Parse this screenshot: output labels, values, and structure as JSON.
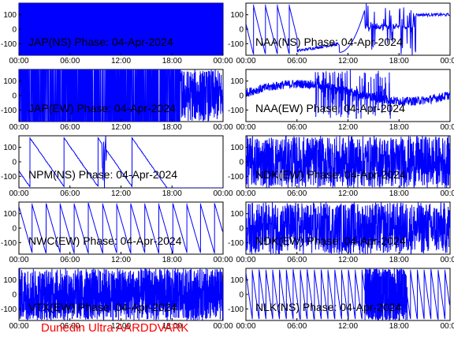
{
  "figure": {
    "footer": "Dunedin Ultra AARDDVARK",
    "footer_color": "#ff0000",
    "trace_color": "#0000ff"
  },
  "chart_data": [
    {
      "type": "line",
      "id": "jap-ns",
      "title": "JAP(NS) Phase: 04-Apr-2024",
      "x_tick_labels": [
        "00:00",
        "06:00",
        "12:00",
        "18:00",
        "00:00"
      ],
      "y_ticks": [
        100,
        0,
        -100
      ],
      "xlim": [
        0,
        24
      ],
      "ylim": [
        -180,
        180
      ],
      "pattern": "saturated",
      "description_values": {
        "ramps": []
      }
    },
    {
      "type": "line",
      "id": "naa-ns",
      "title": "NAA(NS) Phase: 04-Apr-2024",
      "x_tick_labels": [
        "00:00",
        "06:00",
        "12:00",
        "18:00",
        "00:00"
      ],
      "y_ticks": [
        100,
        0,
        -100
      ],
      "xlim": [
        0,
        24
      ],
      "ylim": [
        -180,
        180
      ],
      "pattern": "mixed"
    },
    {
      "type": "line",
      "id": "jap-ew",
      "title": "JAP(EW) Phase: 04-Apr-2024",
      "x_tick_labels": [
        "00:00",
        "06:00",
        "12:00",
        "18:00",
        "00:00"
      ],
      "y_ticks": [
        100,
        0,
        -100
      ],
      "xlim": [
        0,
        24
      ],
      "ylim": [
        -180,
        180
      ],
      "pattern": "saturated-tail"
    },
    {
      "type": "line",
      "id": "naa-ew",
      "title": "NAA(EW) Phase: 04-Apr-2024",
      "x_tick_labels": [
        "00:00",
        "06:00",
        "12:00",
        "18:00",
        "00:00"
      ],
      "y_ticks": [
        100,
        0,
        -100
      ],
      "xlim": [
        0,
        24
      ],
      "ylim": [
        -180,
        180
      ],
      "pattern": "band"
    },
    {
      "type": "line",
      "id": "npm-ns",
      "title": "NPM(NS) Phase: 04-Apr-2024",
      "x_tick_labels": [
        "00:00",
        "06:00",
        "12:00",
        "18:00",
        "00:00"
      ],
      "y_ticks": [
        100,
        0,
        -100
      ],
      "xlim": [
        0,
        24
      ],
      "ylim": [
        -180,
        180
      ],
      "pattern": "drift"
    },
    {
      "type": "line",
      "id": "ndk-ew-1",
      "title": "NDK(EW) Phase: 04-Apr-2024",
      "x_tick_labels": [
        "00:00",
        "06:00",
        "12:00",
        "18:00",
        "00:00"
      ],
      "y_ticks": [
        100,
        0,
        -100
      ],
      "xlim": [
        0,
        24
      ],
      "ylim": [
        -180,
        180
      ],
      "pattern": "noise"
    },
    {
      "type": "line",
      "id": "nwc-ew",
      "title": "NWC(EW) Phase: 04-Apr-2024",
      "x_tick_labels": [
        "00:00",
        "06:00",
        "12:00",
        "18:00",
        "00:00"
      ],
      "y_ticks": [
        100,
        0,
        -100
      ],
      "xlim": [
        0,
        24
      ],
      "ylim": [
        -180,
        180
      ],
      "pattern": "sawtooth"
    },
    {
      "type": "line",
      "id": "ndk-ew-2",
      "title": "NDK(EW) Phase: 04-Apr-2024",
      "x_tick_labels": [
        "00:00",
        "06:00",
        "12:00",
        "18:00",
        "00:00"
      ],
      "y_ticks": [
        100,
        0,
        -100
      ],
      "xlim": [
        0,
        24
      ],
      "ylim": [
        -180,
        180
      ],
      "pattern": "noise"
    },
    {
      "type": "line",
      "id": "vtx-ew",
      "title": "VTX(EW) Phase: 04-Apr-2024",
      "x_tick_labels": [
        "00:00",
        "06:00",
        "12:00",
        "18:00",
        "00:00"
      ],
      "y_ticks": [
        100,
        0,
        -100
      ],
      "xlim": [
        0,
        24
      ],
      "ylim": [
        -180,
        180
      ],
      "pattern": "noise-dense"
    },
    {
      "type": "line",
      "id": "nlk-ns",
      "title": "NLK(NS) Phase: 04-Apr-2024",
      "x_tick_labels": [
        "00:00",
        "06:00",
        "12:00",
        "18:00",
        "00:00"
      ],
      "y_ticks": [
        100,
        0,
        -100
      ],
      "xlim": [
        0,
        24
      ],
      "ylim": [
        -180,
        180
      ],
      "pattern": "sawtooth-fast"
    }
  ]
}
